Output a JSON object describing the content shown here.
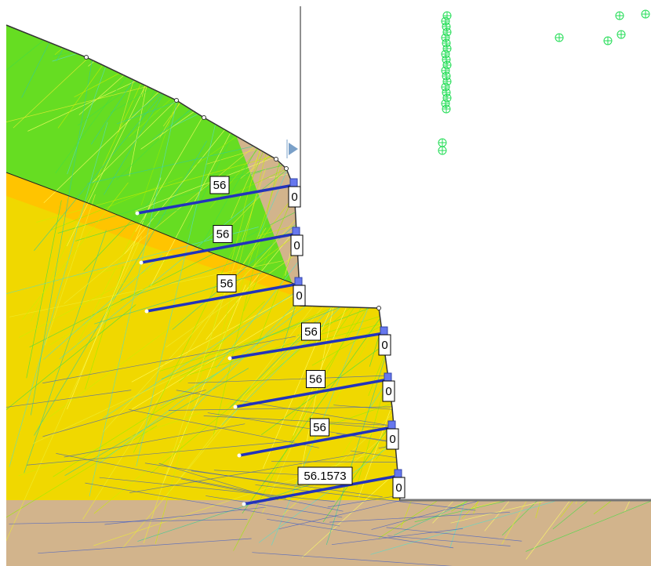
{
  "anchors": [
    {
      "force": "56",
      "end": "0"
    },
    {
      "force": "56",
      "end": "0"
    },
    {
      "force": "56",
      "end": "0"
    },
    {
      "force": "56",
      "end": "0"
    },
    {
      "force": "56",
      "end": "0"
    },
    {
      "force": "56",
      "end": "0"
    },
    {
      "force": "56.1573",
      "end": "0"
    }
  ]
}
